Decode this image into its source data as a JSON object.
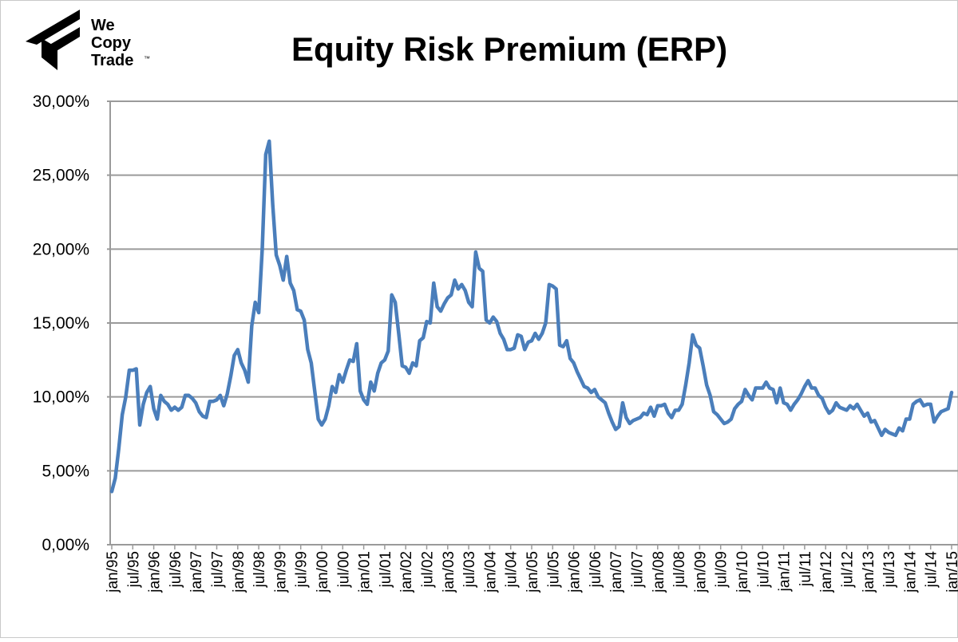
{
  "logo": {
    "lines": [
      "We",
      "Copy",
      "Trade"
    ],
    "mark": "™"
  },
  "chart_data": {
    "type": "line",
    "title": "Equity Risk Premium (ERP)",
    "categories": [
      "jan/95",
      null,
      null,
      null,
      null,
      null,
      "jul/95",
      null,
      null,
      null,
      null,
      null,
      "jan/96",
      null,
      null,
      null,
      null,
      null,
      "jul/96",
      null,
      null,
      null,
      null,
      null,
      "jan/97",
      null,
      null,
      null,
      null,
      null,
      "jul/97",
      null,
      null,
      null,
      null,
      null,
      "jan/98",
      null,
      null,
      null,
      null,
      null,
      "jul/98",
      null,
      null,
      null,
      null,
      null,
      "jan/99",
      null,
      null,
      null,
      null,
      null,
      "jul/99",
      null,
      null,
      null,
      null,
      null,
      "jan/00",
      null,
      null,
      null,
      null,
      null,
      "jul/00",
      null,
      null,
      null,
      null,
      null,
      "jan/01",
      null,
      null,
      null,
      null,
      null,
      "jul/01",
      null,
      null,
      null,
      null,
      null,
      "jan/02",
      null,
      null,
      null,
      null,
      null,
      "jul/02",
      null,
      null,
      null,
      null,
      null,
      "jan/03",
      null,
      null,
      null,
      null,
      null,
      "jul/03",
      null,
      null,
      null,
      null,
      null,
      "jan/04",
      null,
      null,
      null,
      null,
      null,
      "jul/04",
      null,
      null,
      null,
      null,
      null,
      "jan/05",
      null,
      null,
      null,
      null,
      null,
      "jul/05",
      null,
      null,
      null,
      null,
      null,
      "jan/06",
      null,
      null,
      null,
      null,
      null,
      "jul/06",
      null,
      null,
      null,
      null,
      null,
      "jan/07",
      null,
      null,
      null,
      null,
      null,
      "jul/07",
      null,
      null,
      null,
      null,
      null,
      "jan/08",
      null,
      null,
      null,
      null,
      null,
      "jul/08",
      null,
      null,
      null,
      null,
      null,
      "jan/09",
      null,
      null,
      null,
      null,
      null,
      "jul/09",
      null,
      null,
      null,
      null,
      null,
      "jan/10",
      null,
      null,
      null,
      null,
      null,
      "jul/10",
      null,
      null,
      null,
      null,
      null,
      "jan/11",
      null,
      null,
      null,
      null,
      null,
      "jul/11",
      null,
      null,
      null,
      null,
      null,
      "jan/12",
      null,
      null,
      null,
      null,
      null,
      "jul/12",
      null,
      null,
      null,
      null,
      null,
      "jan/13",
      null,
      null,
      null,
      null,
      null,
      "jul/13",
      null,
      null,
      null,
      null,
      null,
      "jan/14",
      null,
      null,
      null,
      null,
      null,
      "jul/14",
      null,
      null,
      null,
      null,
      null,
      "jan/15"
    ],
    "series": [
      {
        "color": "#4a7ebb",
        "values": [
          3.6,
          4.5,
          6.5,
          8.8,
          10,
          11.8,
          11.8,
          11.9,
          8.1,
          9.5,
          10.3,
          10.7,
          9.2,
          8.5,
          10.1,
          9.7,
          9.5,
          9.1,
          9.3,
          9.1,
          9.3,
          10.1,
          10.1,
          9.9,
          9.6,
          9.0,
          8.7,
          8.6,
          9.7,
          9.7,
          9.8,
          10.1,
          9.4,
          10.2,
          11.4,
          12.8,
          13.2,
          12.3,
          11.8,
          11.0,
          14.8,
          16.4,
          15.7,
          20,
          26.4,
          27.3,
          23,
          19.6,
          18.9,
          17.9,
          19.5,
          17.7,
          17.2,
          15.9,
          15.8,
          15.2,
          13.2,
          12.3,
          10.4,
          8.5,
          8.1,
          8.5,
          9.4,
          10.7,
          10.3,
          11.5,
          11.0,
          11.8,
          12.5,
          12.4,
          13.6,
          10.4,
          9.8,
          9.5,
          11,
          10.4,
          11.6,
          12.3,
          12.5,
          13.1,
          16.9,
          16.4,
          14.3,
          12.1,
          12,
          11.6,
          12.3,
          12.1,
          13.8,
          14,
          15.1,
          15,
          17.7,
          16.1,
          15.8,
          16.3,
          16.7,
          16.9,
          17.9,
          17.3,
          17.6,
          17.2,
          16.4,
          16.1,
          19.8,
          18.7,
          18.5,
          15.2,
          15,
          15.4,
          15.1,
          14.3,
          13.9,
          13.2,
          13.2,
          13.3,
          14.2,
          14.1,
          13.2,
          13.7,
          13.8,
          14.3,
          13.9,
          14.3,
          15,
          17.6,
          17.5,
          17.3,
          13.5,
          13.4,
          13.8,
          12.6,
          12.3,
          11.7,
          11.2,
          10.7,
          10.6,
          10.3,
          10.5,
          10,
          9.8,
          9.6,
          8.9,
          8.3,
          7.8,
          8,
          9.6,
          8.6,
          8.2,
          8.4,
          8.5,
          8.6,
          8.9,
          8.8,
          9.3,
          8.7,
          9.4,
          9.4,
          9.5,
          8.9,
          8.6,
          9.1,
          9.1,
          9.5,
          10.8,
          12.3,
          14.2,
          13.5,
          13.3,
          12.1,
          10.8,
          10.1,
          9,
          8.8,
          8.5,
          8.2,
          8.3,
          8.5,
          9.2,
          9.5,
          9.7,
          10.5,
          10.1,
          9.8,
          10.6,
          10.6,
          10.6,
          11,
          10.6,
          10.5,
          9.6,
          10.6,
          9.6,
          9.5,
          9.1,
          9.5,
          9.8,
          10.2,
          10.7,
          11.1,
          10.6,
          10.6,
          10.1,
          9.9,
          9.3,
          8.9,
          9.1,
          9.6,
          9.3,
          9.2,
          9.1,
          9.4,
          9.2,
          9.5,
          9.1,
          8.7,
          8.9,
          8.3,
          8.4,
          7.9,
          7.4,
          7.8,
          7.6,
          7.5,
          7.4,
          7.9,
          7.7,
          8.5,
          8.5,
          9.5,
          9.7,
          9.8,
          9.4,
          9.5,
          9.5,
          8.3,
          8.7,
          9,
          9.1,
          9.2,
          10.3
        ]
      }
    ],
    "ylim": [
      0,
      30
    ],
    "yticks": [
      {
        "value": 0,
        "label": "0,00%"
      },
      {
        "value": 5,
        "label": "5,00%"
      },
      {
        "value": 10,
        "label": "10,00%"
      },
      {
        "value": 15,
        "label": "15,00%"
      },
      {
        "value": 20,
        "label": "20,00%"
      },
      {
        "value": 25,
        "label": "25,00%"
      },
      {
        "value": 30,
        "label": "30,00%"
      }
    ],
    "grid": true
  }
}
